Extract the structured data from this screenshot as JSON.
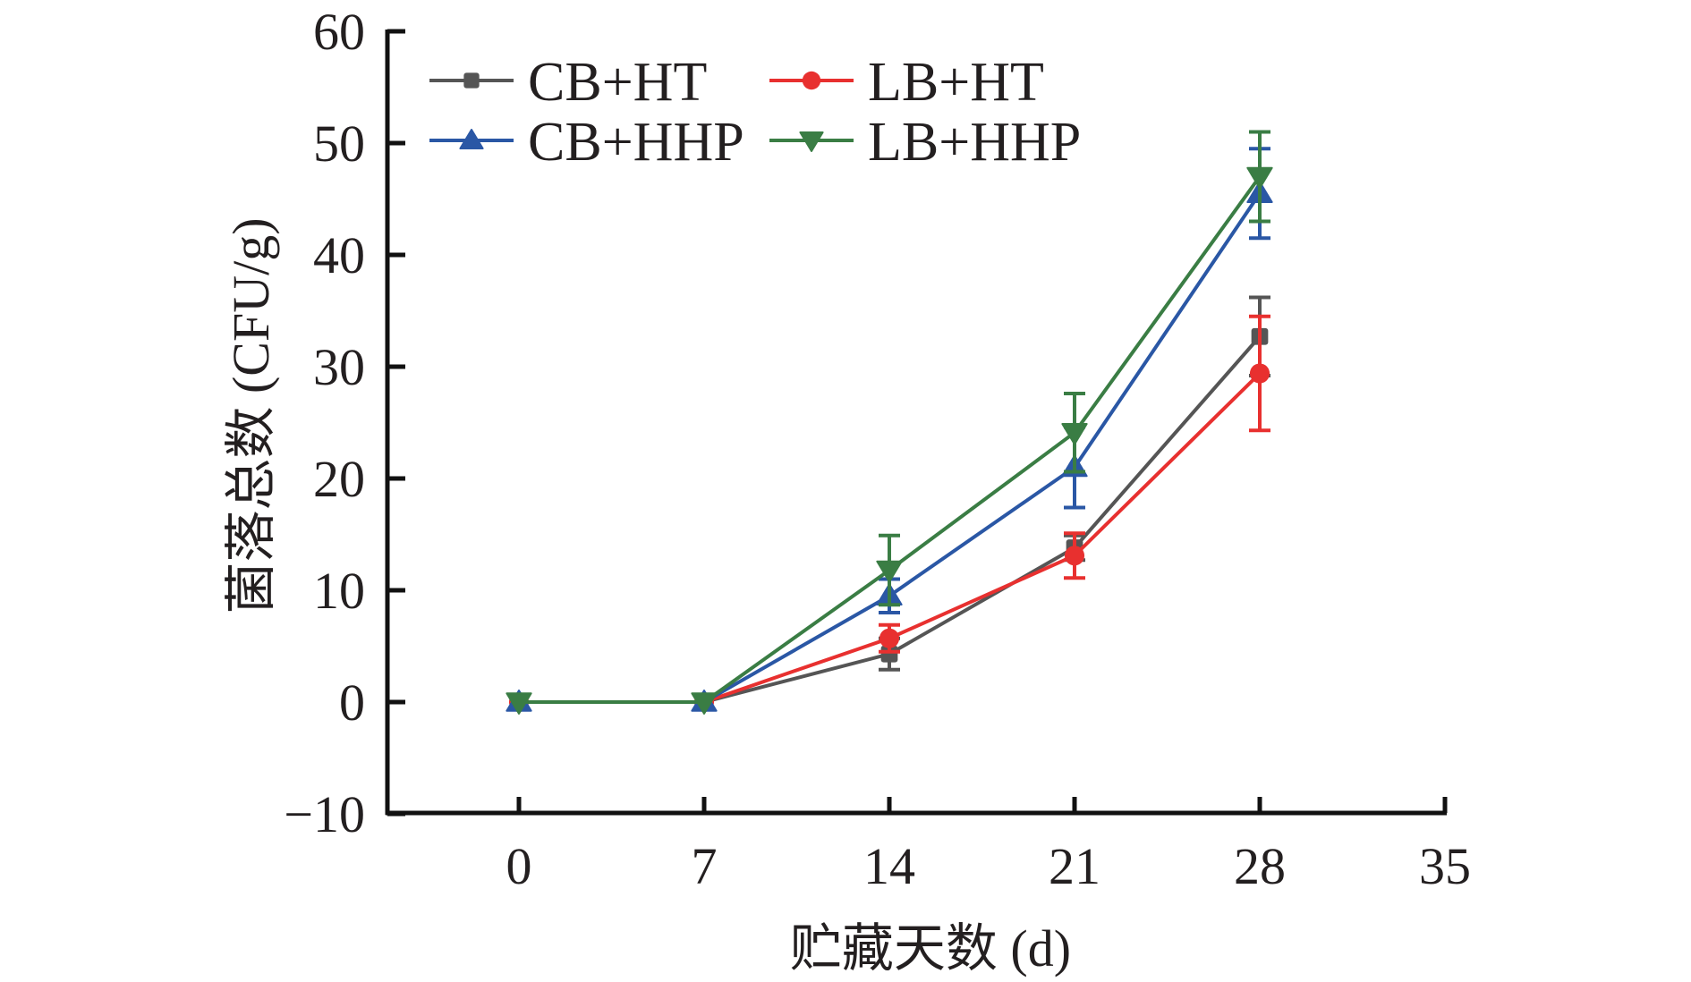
{
  "chart_data": {
    "type": "line",
    "title": "",
    "xlabel": "贮藏天数 (d)",
    "ylabel": "菌落总数 (CFU/g)",
    "xlim": [
      -5,
      35
    ],
    "ylim": [
      -10,
      60
    ],
    "xticks": [
      0,
      7,
      14,
      21,
      28,
      35
    ],
    "yticks": [
      -10,
      0,
      10,
      20,
      30,
      40,
      50,
      60
    ],
    "xtick_labels": [
      "0",
      "7",
      "14",
      "21",
      "28",
      "35"
    ],
    "ytick_labels": [
      "−10",
      "0",
      "10",
      "20",
      "30",
      "40",
      "50",
      "60"
    ],
    "grid": false,
    "legend_position": "top-left",
    "x": [
      0,
      7,
      14,
      21,
      28
    ],
    "series": [
      {
        "name": "CB+HT",
        "color": "#555555",
        "marker": "square",
        "values": [
          0,
          0,
          4.3,
          13.8,
          32.7
        ],
        "errors": [
          0,
          0,
          1.4,
          1.1,
          3.5
        ]
      },
      {
        "name": "LB+HT",
        "color": "#e8302f",
        "marker": "circle",
        "values": [
          0,
          0,
          5.7,
          13.1,
          29.4
        ],
        "errors": [
          0,
          0,
          1.2,
          2.0,
          5.1
        ]
      },
      {
        "name": "CB+HHP",
        "color": "#2a57a5",
        "marker": "triangle-up",
        "values": [
          0,
          0,
          9.5,
          21.0,
          45.5
        ],
        "errors": [
          0,
          0,
          1.5,
          3.6,
          4.0
        ]
      },
      {
        "name": "LB+HHP",
        "color": "#3a7d44",
        "marker": "triangle-down",
        "values": [
          0,
          0,
          11.8,
          24.1,
          47.0
        ],
        "errors": [
          0,
          0,
          3.1,
          3.5,
          4.0
        ]
      }
    ]
  }
}
